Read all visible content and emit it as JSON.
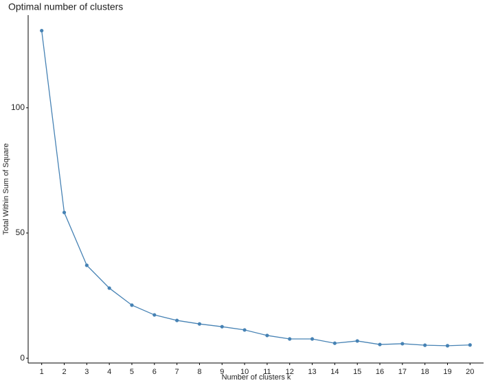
{
  "chart_data": {
    "type": "line",
    "title": "Optimal number of clusters",
    "x_label": "Number of clusters k",
    "y_label": "Total Within Sum of Square",
    "x": [
      1,
      2,
      3,
      4,
      5,
      6,
      7,
      8,
      9,
      10,
      11,
      12,
      13,
      14,
      15,
      16,
      17,
      18,
      19,
      20
    ],
    "values": [
      130.8,
      58.2,
      37.1,
      28.0,
      21.2,
      17.3,
      15.1,
      13.7,
      12.6,
      11.3,
      9.1,
      7.7,
      7.7,
      6.0,
      6.9,
      5.5,
      5.8,
      5.2,
      5.0,
      5.3
    ],
    "color": "#4682b4",
    "xlim": [
      0.4,
      20.6
    ],
    "xticks": [
      1,
      2,
      3,
      4,
      5,
      6,
      7,
      8,
      9,
      10,
      11,
      12,
      13,
      14,
      15,
      16,
      17,
      18,
      19,
      20
    ],
    "ylim": [
      -1.9,
      137
    ],
    "yticks": [
      0,
      50,
      100
    ],
    "grid": false
  }
}
